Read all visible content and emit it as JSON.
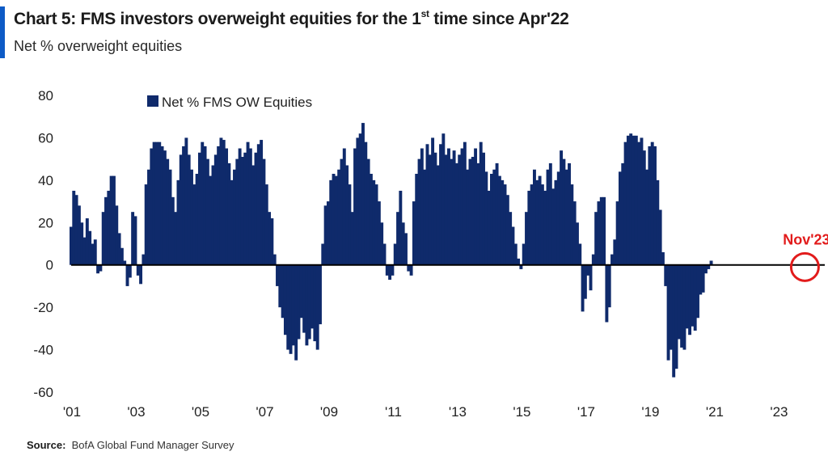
{
  "header": {
    "title_main": "Chart 5: FMS investors overweight equities for the 1",
    "title_sup": "st",
    "title_tail": " time since Apr'22",
    "subtitle": "Net % overweight equities"
  },
  "footer": {
    "source_label": "Source:",
    "source_text": "BofA Global Fund Manager Survey"
  },
  "colors": {
    "bar": "#0f2a6b",
    "accent": "#0d5bc6",
    "annotation": "#e21b1b",
    "axis": "#000000"
  },
  "chart_data": {
    "type": "bar",
    "title": "Chart 5: FMS investors overweight equities for the 1st time since Apr'22",
    "subtitle": "Net % overweight equities",
    "ylim": [
      -60,
      80
    ],
    "yticks": [
      80,
      60,
      40,
      20,
      0,
      -20,
      -40,
      -60
    ],
    "xlim": [
      2001,
      2024.6
    ],
    "xticks": [
      {
        "label": "'01",
        "year": 2001
      },
      {
        "label": "'03",
        "year": 2003
      },
      {
        "label": "'05",
        "year": 2005
      },
      {
        "label": "'07",
        "year": 2007
      },
      {
        "label": "'09",
        "year": 2009
      },
      {
        "label": "'11",
        "year": 2011
      },
      {
        "label": "'13",
        "year": 2013
      },
      {
        "label": "'15",
        "year": 2015
      },
      {
        "label": "'17",
        "year": 2017
      },
      {
        "label": "'19",
        "year": 2019
      },
      {
        "label": "'21",
        "year": 2021
      },
      {
        "label": "'23",
        "year": 2023
      }
    ],
    "grid": false,
    "legend": {
      "position": "top-left",
      "entries": [
        "Net % FMS OW Equities"
      ]
    },
    "series": [
      {
        "name": "Net % FMS OW Equities",
        "frequency": "monthly",
        "start": "2001-01",
        "values": [
          18,
          35,
          33,
          28,
          20,
          13,
          22,
          16,
          10,
          12,
          -4,
          -3,
          25,
          32,
          35,
          42,
          42,
          28,
          15,
          8,
          2,
          -10,
          -6,
          25,
          23,
          -5,
          -9,
          5,
          38,
          45,
          55,
          58,
          58,
          58,
          56,
          54,
          50,
          45,
          32,
          25,
          40,
          52,
          56,
          60,
          52,
          45,
          38,
          43,
          53,
          58,
          56,
          50,
          42,
          47,
          52,
          56,
          60,
          59,
          55,
          48,
          40,
          45,
          50,
          55,
          51,
          53,
          58,
          55,
          47,
          53,
          57,
          59,
          50,
          38,
          25,
          22,
          5,
          -10,
          -20,
          -25,
          -33,
          -40,
          -42,
          -38,
          -45,
          -35,
          -25,
          -32,
          -38,
          -35,
          -30,
          -36,
          -40,
          -28,
          10,
          28,
          30,
          40,
          43,
          42,
          45,
          50,
          55,
          47,
          38,
          25,
          55,
          60,
          62,
          67,
          58,
          50,
          43,
          40,
          38,
          30,
          20,
          10,
          -5,
          -7,
          -5,
          10,
          25,
          35,
          20,
          15,
          -3,
          -5,
          30,
          43,
          50,
          55,
          45,
          57,
          52,
          60,
          53,
          47,
          57,
          62,
          52,
          55,
          50,
          54,
          48,
          52,
          55,
          58,
          45,
          50,
          51,
          55,
          48,
          58,
          53,
          44,
          35,
          43,
          45,
          48,
          42,
          40,
          38,
          33,
          25,
          18,
          10,
          3,
          -2,
          10,
          25,
          35,
          38,
          45,
          40,
          42,
          38,
          35,
          45,
          48,
          36,
          40,
          44,
          54,
          50,
          45,
          48,
          38,
          30,
          20,
          10,
          -22,
          -16,
          -5,
          -12,
          5,
          25,
          30,
          32,
          32,
          -27,
          -20,
          5,
          12,
          30,
          44,
          48,
          58,
          61,
          62,
          61,
          61,
          58,
          60,
          54,
          45,
          56,
          58,
          56,
          40,
          26,
          6,
          -10,
          -45,
          -40,
          -53,
          -49,
          -35,
          -39,
          -40,
          -30,
          -33,
          -29,
          -31,
          -25,
          -14,
          -13,
          -4,
          -2,
          2
        ]
      }
    ],
    "annotations": [
      {
        "text": "Nov'23",
        "year": 2023.83,
        "value": -1,
        "style": "red circle"
      }
    ]
  }
}
